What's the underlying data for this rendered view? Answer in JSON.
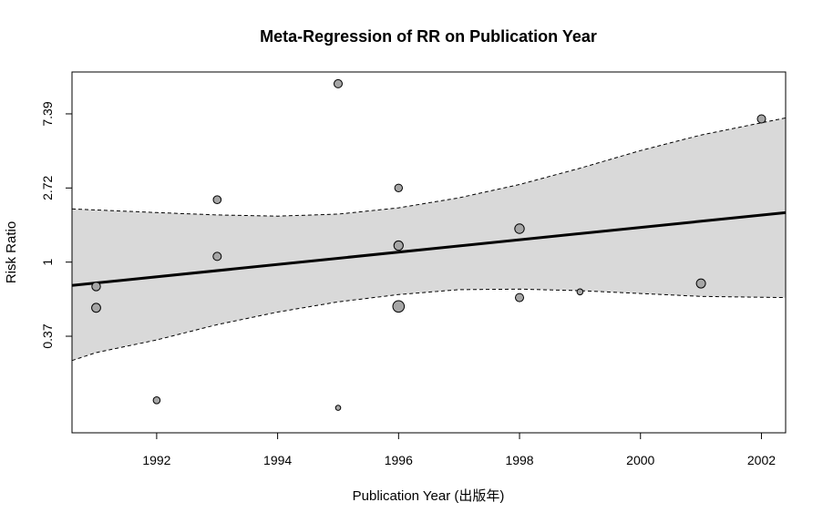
{
  "chart_data": {
    "type": "scatter",
    "title": "Meta-Regression of RR on Publication Year",
    "xlabel": "Publication Year (出版年)",
    "ylabel": "Risk Ratio",
    "x_scale": "linear",
    "y_scale": "log",
    "xlim": [
      1990.6,
      2002.4
    ],
    "ylim": [
      0.1,
      13.0
    ],
    "x_ticks": [
      1992,
      1994,
      1996,
      1998,
      2000,
      2002
    ],
    "y_ticks": [
      {
        "value": 0.3679,
        "label": "0.37"
      },
      {
        "value": 1.0,
        "label": "1"
      },
      {
        "value": 2.7183,
        "label": "2.72"
      },
      {
        "value": 7.3891,
        "label": "7.39"
      }
    ],
    "points": [
      {
        "x": 1991,
        "y": 0.72,
        "weight": 2.3
      },
      {
        "x": 1991,
        "y": 0.54,
        "weight": 2.6
      },
      {
        "x": 1992,
        "y": 0.155,
        "weight": 1.0
      },
      {
        "x": 1993,
        "y": 2.32,
        "weight": 1.6
      },
      {
        "x": 1993,
        "y": 1.08,
        "weight": 2.0
      },
      {
        "x": 1995,
        "y": 11.1,
        "weight": 1.9
      },
      {
        "x": 1995,
        "y": 0.14,
        "weight": 0.2
      },
      {
        "x": 1996,
        "y": 2.72,
        "weight": 1.5
      },
      {
        "x": 1996,
        "y": 1.25,
        "weight": 3.0
      },
      {
        "x": 1996,
        "y": 0.55,
        "weight": 5.6
      },
      {
        "x": 1998,
        "y": 1.57,
        "weight": 3.1
      },
      {
        "x": 1998,
        "y": 0.62,
        "weight": 1.9
      },
      {
        "x": 1999,
        "y": 0.67,
        "weight": 0.5
      },
      {
        "x": 2001,
        "y": 0.75,
        "weight": 2.8
      },
      {
        "x": 2002,
        "y": 6.9,
        "weight": 2.0
      }
    ],
    "regression_line": [
      {
        "x": 1990.6,
        "y": 0.73
      },
      {
        "x": 2002.4,
        "y": 1.95
      }
    ],
    "ci_upper": [
      {
        "x": 1990.6,
        "y": 2.05
      },
      {
        "x": 1992,
        "y": 1.95
      },
      {
        "x": 1993,
        "y": 1.89
      },
      {
        "x": 1994,
        "y": 1.86
      },
      {
        "x": 1995,
        "y": 1.91
      },
      {
        "x": 1996,
        "y": 2.08
      },
      {
        "x": 1997,
        "y": 2.38
      },
      {
        "x": 1998,
        "y": 2.85
      },
      {
        "x": 1999,
        "y": 3.55
      },
      {
        "x": 2000,
        "y": 4.5
      },
      {
        "x": 2001,
        "y": 5.55
      },
      {
        "x": 2002.4,
        "y": 7.0
      }
    ],
    "ci_lower": [
      {
        "x": 1990.6,
        "y": 0.265
      },
      {
        "x": 1991,
        "y": 0.295
      },
      {
        "x": 1992,
        "y": 0.35
      },
      {
        "x": 1993,
        "y": 0.43
      },
      {
        "x": 1994,
        "y": 0.51
      },
      {
        "x": 1995,
        "y": 0.585
      },
      {
        "x": 1996,
        "y": 0.645
      },
      {
        "x": 1997,
        "y": 0.69
      },
      {
        "x": 1998,
        "y": 0.695
      },
      {
        "x": 1999,
        "y": 0.68
      },
      {
        "x": 2000,
        "y": 0.655
      },
      {
        "x": 2001,
        "y": 0.63
      },
      {
        "x": 2002.4,
        "y": 0.62
      }
    ],
    "grid": false,
    "colors": {
      "ci_fill": "#d9d9d9",
      "point_fill": "#a6a6a6",
      "stroke": "#000000"
    }
  }
}
